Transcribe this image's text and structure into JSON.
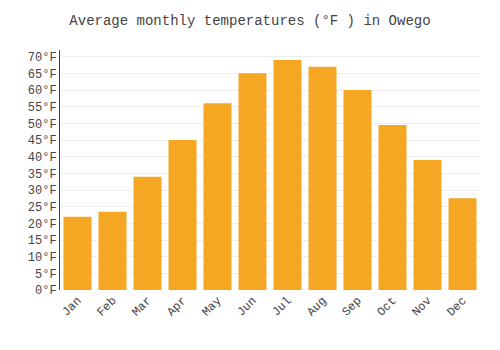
{
  "chart_data": {
    "type": "bar",
    "title": "Average monthly temperatures (°F ) in Owego",
    "categories": [
      "Jan",
      "Feb",
      "Mar",
      "Apr",
      "May",
      "Jun",
      "Jul",
      "Aug",
      "Sep",
      "Oct",
      "Nov",
      "Dec"
    ],
    "values": [
      22,
      23.5,
      34,
      45,
      56,
      65,
      69,
      67,
      60,
      49.5,
      39,
      27.5
    ],
    "color": "#F5A623",
    "ylim": [
      0,
      72
    ],
    "yticks": [
      {
        "value": 0,
        "label": "0°F"
      },
      {
        "value": 5,
        "label": "5°F"
      },
      {
        "value": 10,
        "label": "10°F"
      },
      {
        "value": 15,
        "label": "15°F"
      },
      {
        "value": 20,
        "label": "20°F"
      },
      {
        "value": 25,
        "label": "25°F"
      },
      {
        "value": 30,
        "label": "30°F"
      },
      {
        "value": 35,
        "label": "35°F"
      },
      {
        "value": 40,
        "label": "40°F"
      },
      {
        "value": 45,
        "label": "45°F"
      },
      {
        "value": 50,
        "label": "50°F"
      },
      {
        "value": 55,
        "label": "55°F"
      },
      {
        "value": 60,
        "label": "60°F"
      },
      {
        "value": 65,
        "label": "65°F"
      },
      {
        "value": 70,
        "label": "70°F"
      }
    ],
    "grid": true
  }
}
